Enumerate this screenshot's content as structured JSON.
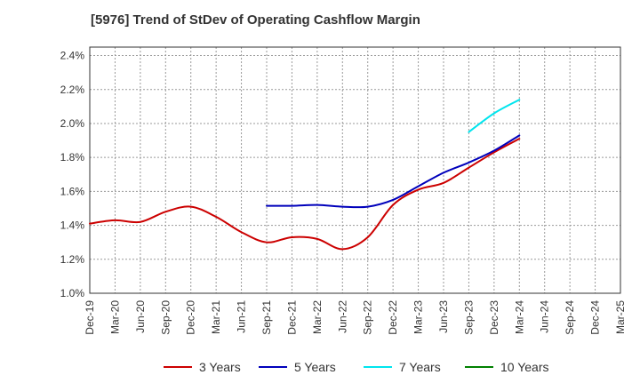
{
  "chart_data": {
    "type": "line",
    "title": "[5976]  Trend of StDev of Operating Cashflow Margin",
    "xlabel": "",
    "ylabel": "",
    "x_ticks": [
      "Dec-19",
      "Mar-20",
      "Jun-20",
      "Sep-20",
      "Dec-20",
      "Mar-21",
      "Jun-21",
      "Sep-21",
      "Dec-21",
      "Mar-22",
      "Jun-22",
      "Sep-22",
      "Dec-22",
      "Mar-23",
      "Jun-23",
      "Sep-23",
      "Dec-23",
      "Mar-24",
      "Jun-24",
      "Sep-24",
      "Dec-24",
      "Mar-25"
    ],
    "y_ticks": [
      "1.0%",
      "1.2%",
      "1.4%",
      "1.6%",
      "1.8%",
      "2.0%",
      "2.2%",
      "2.4%"
    ],
    "ylim": [
      1.0,
      2.45
    ],
    "grid": true,
    "legend_position": "bottom",
    "series": [
      {
        "name": "3 Years",
        "color": "#cc0000",
        "x": [
          "Dec-19",
          "Mar-20",
          "Jun-20",
          "Sep-20",
          "Dec-20",
          "Mar-21",
          "Jun-21",
          "Sep-21",
          "Dec-21",
          "Mar-22",
          "Jun-22",
          "Sep-22",
          "Dec-22",
          "Mar-23",
          "Jun-23",
          "Sep-23",
          "Dec-23",
          "Mar-24"
        ],
        "values": [
          1.41,
          1.43,
          1.42,
          1.48,
          1.51,
          1.45,
          1.36,
          1.3,
          1.33,
          1.32,
          1.26,
          1.33,
          1.52,
          1.61,
          1.65,
          1.74,
          1.83,
          1.91
        ]
      },
      {
        "name": "5 Years",
        "color": "#0000bb",
        "x": [
          "Sep-21",
          "Dec-21",
          "Mar-22",
          "Jun-22",
          "Sep-22",
          "Dec-22",
          "Mar-23",
          "Jun-23",
          "Sep-23",
          "Dec-23",
          "Mar-24"
        ],
        "values": [
          1.515,
          1.515,
          1.52,
          1.51,
          1.51,
          1.55,
          1.63,
          1.71,
          1.77,
          1.84,
          1.93
        ]
      },
      {
        "name": "7 Years",
        "color": "#00e5ee",
        "x": [
          "Sep-23",
          "Dec-23",
          "Mar-24"
        ],
        "values": [
          1.95,
          2.06,
          2.14
        ]
      },
      {
        "name": "10 Years",
        "color": "#008000",
        "x": [],
        "values": []
      }
    ]
  }
}
